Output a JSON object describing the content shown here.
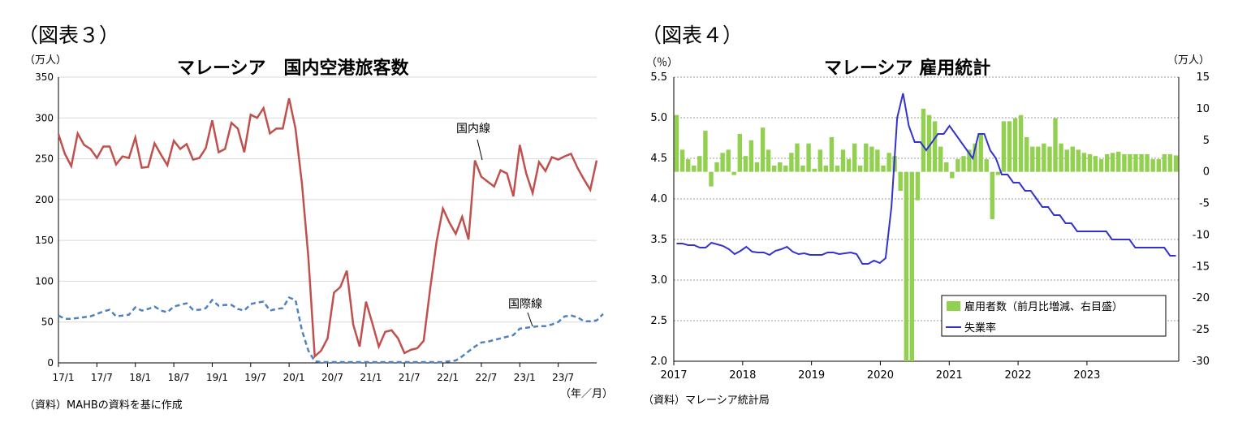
{
  "left": {
    "figure_label": "（図表３）",
    "unit": "（万人）",
    "title": "マレーシア　国内空港旅客数",
    "source": "（資料）MAHBの資料を基に作成",
    "xunit": "（年／月）",
    "ann_domestic": "国内線",
    "ann_international": "国際線",
    "y_ticks": [
      "350",
      "300",
      "250",
      "200",
      "150",
      "100",
      "50",
      "0"
    ],
    "x_ticks": [
      "17/1",
      "17/7",
      "18/1",
      "18/7",
      "19/1",
      "19/7",
      "20/1",
      "20/7",
      "21/1",
      "21/7",
      "22/1",
      "22/7",
      "23/1",
      "23/7"
    ]
  },
  "right": {
    "figure_label": "（図表４）",
    "unit_left": "（％）",
    "unit_right": "（万人）",
    "title": "マレーシア 雇用統計",
    "source": "（資料）マレーシア統計局",
    "legend_bar": "雇用者数（前月比増減、右目盛）",
    "legend_line": "失業率",
    "y_left_ticks": [
      "5.5",
      "5.0",
      "4.5",
      "4.0",
      "3.5",
      "3.0",
      "2.5",
      "2.0"
    ],
    "y_right_ticks": [
      "15",
      "10",
      "5",
      "0",
      "-5",
      "-10",
      "-15",
      "-20",
      "-25",
      "-30"
    ],
    "x_ticks": [
      "2017",
      "2018",
      "2019",
      "2020",
      "2021",
      "2022",
      "2023"
    ]
  },
  "chart_data": [
    {
      "type": "line",
      "title": "マレーシア　国内空港旅客数",
      "ylabel": "（万人）",
      "xlabel": "（年／月）",
      "ylim": [
        0,
        350
      ],
      "x_start": "2017-01",
      "x_end": "2023-12",
      "grid": true,
      "series": [
        {
          "name": "国内線",
          "color": "#c0504d",
          "style": "solid",
          "values": [
            280,
            256,
            241,
            281,
            267,
            262,
            251,
            265,
            265,
            243,
            253,
            251,
            276,
            239,
            240,
            269,
            255,
            242,
            272,
            262,
            268,
            249,
            251,
            263,
            297,
            258,
            262,
            294,
            287,
            258,
            304,
            300,
            312,
            281,
            287,
            287,
            324,
            287,
            220,
            130,
            8,
            15,
            30,
            86,
            93,
            113,
            47,
            20,
            75,
            48,
            20,
            38,
            40,
            30,
            12,
            16,
            18,
            27,
            90,
            148,
            189,
            172,
            158,
            179,
            151,
            248,
            228,
            222,
            216,
            236,
            232,
            204,
            267,
            232,
            208,
            246,
            235,
            252,
            249,
            253,
            256,
            239,
            225,
            212,
            248
          ]
        },
        {
          "name": "国際線",
          "color": "#4f81bd",
          "style": "dashed",
          "values": [
            58,
            54,
            54,
            55,
            56,
            57,
            60,
            63,
            65,
            57,
            58,
            59,
            68,
            64,
            66,
            69,
            64,
            62,
            69,
            71,
            73,
            65,
            65,
            67,
            77,
            70,
            71,
            71,
            66,
            64,
            72,
            74,
            75,
            64,
            66,
            67,
            80,
            77,
            40,
            15,
            2,
            1,
            1,
            1,
            1,
            1,
            1,
            1,
            1,
            1,
            1,
            1,
            1,
            1,
            1,
            1,
            1,
            1,
            1,
            1,
            1,
            2,
            3,
            8,
            14,
            20,
            25,
            26,
            28,
            30,
            32,
            34,
            42,
            43,
            44,
            45,
            45,
            47,
            50,
            57,
            58,
            56,
            51,
            51,
            52,
            60
          ]
        }
      ]
    },
    {
      "type": "bar",
      "title": "マレーシア 雇用統計",
      "ylabel": "（％）",
      "y2label": "（万人）",
      "ylim": [
        2.0,
        5.5
      ],
      "y2lim": [
        -30,
        15
      ],
      "x_start": "2017-01",
      "x_end": "2023-12",
      "legend": "bottom-right",
      "series": [
        {
          "name": "雇用者数（前月比増減、右目盛）",
          "type": "bar",
          "axis": "right",
          "color": "#92d050",
          "values": [
            9,
            3.5,
            2,
            1,
            2.5,
            6.5,
            -2.3,
            1.5,
            3,
            3.5,
            -0.5,
            6,
            2.5,
            5,
            1.5,
            7,
            3.5,
            1,
            1.5,
            1,
            3,
            4.5,
            1,
            4.5,
            0.5,
            3.5,
            1,
            5.5,
            1,
            3.5,
            2,
            4.5,
            1,
            4.5,
            4,
            3.5,
            1,
            3,
            2.5,
            -3,
            -31,
            -30,
            -4.5,
            10,
            9,
            8,
            4,
            1.5,
            -1,
            2,
            2.5,
            3.5,
            4.5,
            6,
            2,
            -7.5,
            -0.5,
            8,
            8,
            8.5,
            9,
            5.5,
            4,
            4,
            4.5,
            4,
            8.5,
            4.5,
            3.5,
            4,
            3.5,
            3,
            2.8,
            2.5,
            2,
            2.8,
            3,
            3.2,
            2.8,
            2.8,
            2.8,
            2.8,
            2.8,
            2,
            2,
            2.8,
            2.8,
            2.6
          ]
        },
        {
          "name": "失業率",
          "type": "line",
          "axis": "left",
          "color": "#3333cc",
          "values": [
            3.45,
            3.45,
            3.43,
            3.43,
            3.4,
            3.4,
            3.46,
            3.44,
            3.42,
            3.38,
            3.32,
            3.36,
            3.41,
            3.35,
            3.34,
            3.34,
            3.31,
            3.36,
            3.38,
            3.41,
            3.35,
            3.32,
            3.33,
            3.31,
            3.31,
            3.31,
            3.34,
            3.34,
            3.32,
            3.33,
            3.34,
            3.32,
            3.2,
            3.2,
            3.24,
            3.21,
            3.27,
            3.9,
            5.0,
            5.3,
            4.9,
            4.7,
            4.7,
            4.6,
            4.7,
            4.8,
            4.8,
            4.9,
            4.8,
            4.7,
            4.6,
            4.5,
            4.8,
            4.8,
            4.6,
            4.5,
            4.3,
            4.3,
            4.2,
            4.2,
            4.1,
            4.1,
            4.0,
            3.9,
            3.9,
            3.8,
            3.8,
            3.7,
            3.7,
            3.6,
            3.6,
            3.6,
            3.6,
            3.6,
            3.6,
            3.5,
            3.5,
            3.5,
            3.5,
            3.4,
            3.4,
            3.4,
            3.4,
            3.4,
            3.4,
            3.3,
            3.3
          ]
        }
      ]
    }
  ]
}
